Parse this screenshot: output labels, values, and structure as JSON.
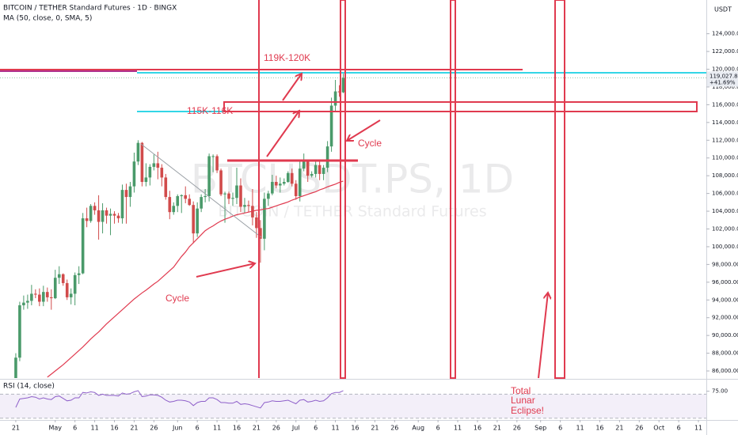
{
  "chart_data": {
    "type": "candlestick",
    "title": "BITCOIN / TETHER Standard Futures · 1D · BINGX",
    "subtitle": "MA (50, close, 0, SMA, 5)",
    "watermark": "BTCUSDT.PS, 1D",
    "watermark_subtitle": "BITCOIN / TETHER Standard Futures",
    "y_axis_label": "USDT",
    "up_color": "#4a9a6a",
    "down_color": "#d14b4b",
    "x": [
      "Apr 21",
      "Apr 22",
      "Apr 23",
      "Apr 24",
      "Apr 25",
      "Apr 26",
      "Apr 27",
      "Apr 28",
      "Apr 29",
      "Apr 30",
      "May 1",
      "May 2",
      "May 3",
      "May 4",
      "May 5",
      "May 6",
      "May 7",
      "May 8",
      "May 9",
      "May 10",
      "May 11",
      "May 12",
      "May 13",
      "May 14",
      "May 15",
      "May 16",
      "May 17",
      "May 18",
      "May 19",
      "May 20",
      "May 21",
      "May 22",
      "May 23",
      "May 24",
      "May 25",
      "May 26",
      "May 27",
      "May 28",
      "May 29",
      "May 30",
      "May 31",
      "Jun 1",
      "Jun 2",
      "Jun 3",
      "Jun 4",
      "Jun 5",
      "Jun 6",
      "Jun 7",
      "Jun 8",
      "Jun 9",
      "Jun 10",
      "Jun 11",
      "Jun 12",
      "Jun 13",
      "Jun 14",
      "Jun 15",
      "Jun 16",
      "Jun 17",
      "Jun 18",
      "Jun 19",
      "Jun 20",
      "Jun 21",
      "Jun 22",
      "Jun 23",
      "Jun 24",
      "Jun 25",
      "Jun 26",
      "Jun 27",
      "Jun 28",
      "Jun 29",
      "Jun 30",
      "Jul 1",
      "Jul 2",
      "Jul 3",
      "Jul 4",
      "Jul 5",
      "Jul 6",
      "Jul 7",
      "Jul 8",
      "Jul 9",
      "Jul 10",
      "Jul 11",
      "Jul 12",
      "Jul 13"
    ],
    "open": [
      85200,
      87500,
      93400,
      93700,
      93900,
      94700,
      94600,
      93800,
      94900,
      94300,
      94200,
      96500,
      96900,
      95900,
      94300,
      94700,
      96800,
      97000,
      103200,
      102900,
      104600,
      104100,
      102800,
      104100,
      103500,
      103700,
      103500,
      103200,
      106400,
      105600,
      106800,
      109600,
      111700,
      107300,
      107800,
      109000,
      109400,
      108900,
      107800,
      105600,
      103900,
      104600,
      105700,
      105800,
      105400,
      104700,
      101500,
      104300,
      105600,
      105700,
      110200,
      110200,
      108600,
      105900,
      106000,
      105400,
      105500,
      106900,
      104500,
      104700,
      104600,
      103300,
      102100,
      100900,
      105400,
      106000,
      107300,
      106900,
      107100,
      107300,
      108300,
      107100,
      105700,
      108800,
      109600,
      108000,
      108200,
      109200,
      108200,
      108900,
      111300,
      115900,
      117500,
      117400
    ],
    "high": [
      88000,
      93800,
      94500,
      94600,
      95700,
      95200,
      95300,
      95600,
      95400,
      95200,
      97400,
      97800,
      97000,
      96300,
      95300,
      97100,
      97800,
      103800,
      104400,
      104800,
      105000,
      105800,
      104900,
      104400,
      104300,
      104000,
      103800,
      107000,
      107100,
      107300,
      110600,
      112000,
      111800,
      109400,
      109300,
      110400,
      110700,
      109300,
      108200,
      106300,
      105000,
      105900,
      105900,
      106800,
      105900,
      105100,
      105000,
      105900,
      106500,
      110500,
      110400,
      110400,
      108800,
      106200,
      106200,
      106100,
      108900,
      107700,
      105500,
      105200,
      106500,
      103900,
      103000,
      106100,
      106300,
      108100,
      108000,
      107800,
      107700,
      108500,
      108800,
      107500,
      109800,
      110500,
      109700,
      108500,
      109700,
      109700,
      109200,
      111900,
      116800,
      118800,
      118200,
      119500
    ],
    "low": [
      85100,
      87100,
      92900,
      93000,
      93400,
      94200,
      93300,
      93300,
      93800,
      92900,
      94100,
      95800,
      95600,
      94000,
      93500,
      93400,
      95800,
      96900,
      102200,
      102700,
      103600,
      100800,
      101500,
      102600,
      101300,
      102600,
      102700,
      102600,
      102600,
      104500,
      106100,
      109200,
      106800,
      106800,
      106900,
      108600,
      107600,
      106800,
      105300,
      103100,
      103600,
      103900,
      103800,
      104900,
      104600,
      100400,
      101100,
      103900,
      105000,
      105100,
      108400,
      108300,
      105700,
      102700,
      104800,
      104600,
      104800,
      103900,
      103800,
      103900,
      102400,
      101000,
      98200,
      99600,
      104600,
      105800,
      106600,
      106100,
      106900,
      107200,
      106800,
      105300,
      105100,
      108500,
      107300,
      107800,
      107800,
      107500,
      107500,
      108400,
      110700,
      115300,
      116900,
      117300
    ],
    "close": [
      87500,
      93400,
      93700,
      93900,
      94700,
      94600,
      93800,
      94900,
      94300,
      94200,
      96500,
      96900,
      95900,
      94300,
      94700,
      96800,
      97000,
      103200,
      102900,
      104600,
      104100,
      102800,
      104100,
      103500,
      103700,
      103500,
      103200,
      106400,
      105600,
      106800,
      109600,
      111700,
      107300,
      107800,
      109000,
      109400,
      108900,
      107800,
      105600,
      103900,
      104600,
      105700,
      105800,
      105400,
      104700,
      101500,
      104300,
      105600,
      105700,
      110200,
      110200,
      108600,
      105900,
      106000,
      105400,
      105500,
      106900,
      104500,
      104700,
      104600,
      103300,
      102100,
      100900,
      105400,
      106000,
      107300,
      106900,
      107100,
      107300,
      108300,
      107100,
      105700,
      108800,
      109600,
      108000,
      108200,
      109200,
      108200,
      108900,
      111300,
      115900,
      117500,
      117400,
      119027.84
    ],
    "last_price_label": "119,027.84",
    "change_label": "+41.69%",
    "ma": {
      "color": "#e03a4f",
      "values": [
        null,
        null,
        null,
        null,
        null,
        null,
        null,
        null,
        85300,
        85650,
        86000,
        86350,
        86700,
        87100,
        87500,
        87900,
        88300,
        88700,
        89150,
        89600,
        90000,
        90400,
        90850,
        91300,
        91700,
        92100,
        92500,
        92900,
        93300,
        93700,
        94100,
        94450,
        94800,
        95100,
        95450,
        95800,
        96100,
        96500,
        96900,
        97300,
        97700,
        98300,
        98900,
        99400,
        100000,
        100450,
        100900,
        101350,
        101800,
        102100,
        102350,
        102650,
        102900,
        103100,
        103250,
        103450,
        103600,
        103700,
        103800,
        103900,
        104000,
        104100,
        104150,
        104250,
        104300,
        104450,
        104600,
        104750,
        104900,
        105050,
        105250,
        105400,
        105600,
        105750,
        105900,
        106050,
        106200,
        106400,
        106550,
        106750,
        106900,
        107050,
        107250,
        107400
      ]
    },
    "xlim": [
      "Apr 17",
      "Oct 13"
    ],
    "xticks": [
      {
        "value": "Apr 21",
        "label": "21"
      },
      {
        "value": "May 1",
        "label": "May"
      },
      {
        "value": "May 6",
        "label": "6"
      },
      {
        "value": "May 11",
        "label": "11"
      },
      {
        "value": "May 16",
        "label": "16"
      },
      {
        "value": "May 21",
        "label": "21"
      },
      {
        "value": "May 26",
        "label": "26"
      },
      {
        "value": "Jun 1",
        "label": "Jun"
      },
      {
        "value": "Jun 6",
        "label": "6"
      },
      {
        "value": "Jun 11",
        "label": "11"
      },
      {
        "value": "Jun 16",
        "label": "16"
      },
      {
        "value": "Jun 21",
        "label": "21"
      },
      {
        "value": "Jun 26",
        "label": "26"
      },
      {
        "value": "Jul 1",
        "label": "Jul"
      },
      {
        "value": "Jul 6",
        "label": "6"
      },
      {
        "value": "Jul 11",
        "label": "11"
      },
      {
        "value": "Jul 16",
        "label": "16"
      },
      {
        "value": "Jul 21",
        "label": "21"
      },
      {
        "value": "Jul 26",
        "label": "26"
      },
      {
        "value": "Aug 1",
        "label": "Aug"
      },
      {
        "value": "Aug 6",
        "label": "6"
      },
      {
        "value": "Aug 11",
        "label": "11"
      },
      {
        "value": "Aug 16",
        "label": "16"
      },
      {
        "value": "Aug 21",
        "label": "21"
      },
      {
        "value": "Aug 26",
        "label": "26"
      },
      {
        "value": "Sep 1",
        "label": "Sep"
      },
      {
        "value": "Sep 6",
        "label": "6"
      },
      {
        "value": "Sep 11",
        "label": "11"
      },
      {
        "value": "Sep 16",
        "label": "16"
      },
      {
        "value": "Sep 21",
        "label": "21"
      },
      {
        "value": "Sep 26",
        "label": "26"
      },
      {
        "value": "Oct 1",
        "label": "Oct"
      },
      {
        "value": "Oct 6",
        "label": "6"
      },
      {
        "value": "Oct 11",
        "label": "11"
      }
    ],
    "ylim": [
      85200,
      127800
    ],
    "yticks": [
      {
        "value": 86000,
        "label": "86,000.00"
      },
      {
        "value": 88000,
        "label": "88,000.00"
      },
      {
        "value": 90000,
        "label": "90,000.00"
      },
      {
        "value": 92000,
        "label": "92,000.00"
      },
      {
        "value": 94000,
        "label": "94,000.00"
      },
      {
        "value": 96000,
        "label": "96,000.00"
      },
      {
        "value": 98000,
        "label": "98,000.00"
      },
      {
        "value": 100000,
        "label": "100,000.00"
      },
      {
        "value": 102000,
        "label": "102,000.00"
      },
      {
        "value": 104000,
        "label": "104,000.00"
      },
      {
        "value": 106000,
        "label": "106,000.00"
      },
      {
        "value": 108000,
        "label": "108,000.00"
      },
      {
        "value": 110000,
        "label": "110,000.00"
      },
      {
        "value": 112000,
        "label": "112,000.00"
      },
      {
        "value": 114000,
        "label": "114,000.00"
      },
      {
        "value": 116000,
        "label": "116,000.00"
      },
      {
        "value": 118000,
        "label": "118,000.00"
      },
      {
        "value": 120000,
        "label": "120,000.00"
      },
      {
        "value": 122000,
        "label": "122,000.00"
      },
      {
        "value": 124000,
        "label": "124,000.00"
      }
    ],
    "rsi": {
      "name": "RSI (14, close)",
      "color": "#8e5fc9",
      "band": [
        30,
        70
      ],
      "ylim": [
        27,
        93
      ],
      "yticks": [
        {
          "value": 75,
          "label": "75.00"
        }
      ],
      "values": [
        48,
        62,
        63,
        64,
        66,
        65,
        62,
        64,
        62,
        61,
        66,
        67,
        63,
        59,
        60,
        64,
        64,
        73,
        72,
        74,
        73,
        68,
        70,
        68,
        68,
        68,
        67,
        72,
        70,
        71,
        74,
        76,
        66,
        67,
        69,
        69,
        68,
        65,
        60,
        57,
        58,
        60,
        60,
        59,
        57,
        51,
        56,
        58,
        58,
        64,
        64,
        61,
        56,
        56,
        55,
        55,
        58,
        53,
        54,
        53,
        51,
        49,
        47,
        56,
        57,
        59,
        58,
        58,
        59,
        60,
        57,
        54,
        60,
        61,
        57,
        58,
        60,
        58,
        59,
        64,
        71,
        73,
        73,
        76
      ]
    },
    "annotations": [
      "119K-120K",
      "115K-116K",
      "Cycle",
      "Cycle",
      "Total",
      "Lunar",
      "Eclipse!"
    ]
  }
}
